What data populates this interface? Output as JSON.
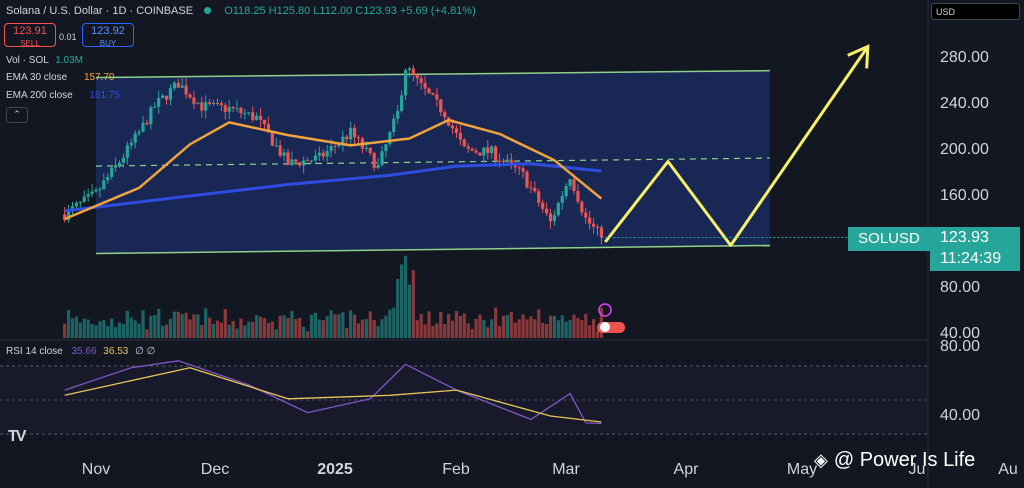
{
  "header": {
    "title": "Solana / U.S. Dollar · 1D · COINBASE",
    "ohlc": "O118.25 H125.80 L112.00 C123.93 +5.69 (+4.81%)"
  },
  "trade": {
    "sell_price": "123.91",
    "sell_label": "SELL",
    "spread": "0.01",
    "buy_price": "123.92",
    "buy_label": "BUY"
  },
  "indicators": {
    "vol_label": "Vol · SOL",
    "vol_value": "1.03M",
    "ema30_label": "EMA 30 close",
    "ema30_value": "157.70",
    "ema200_label": "EMA 200 close",
    "ema200_value": "181.75",
    "collapse_icon": "chevron-up-icon"
  },
  "currency_select": "USD",
  "price_label": {
    "symbol": "SOLUSD",
    "price": "123.93",
    "countdown": "11:24:39"
  },
  "rsi": {
    "label": "RSI 14 close",
    "value": "35.66",
    "ma_value": "36.53",
    "flags": "∅ ∅"
  },
  "watermark": "@ Power Is Life",
  "colors": {
    "background": "#131722",
    "up": "#26a69a",
    "down": "#ef5350",
    "ema30": "#f0a33c",
    "ema200": "#2f4de0",
    "channel": "#8fd18a",
    "channel_fill": "#1b2a5e",
    "projection": "#f5ef6a",
    "rsi": "#7e57c2",
    "rsi_ma": "#e6c659"
  },
  "chart_data": {
    "type": "candlestick",
    "title": "Solana / U.S. Dollar · 1D · COINBASE",
    "x_ticks": [
      "Nov",
      "Dec",
      "2025",
      "Feb",
      "Mar",
      "Apr",
      "May",
      "Ju",
      "Au"
    ],
    "y_ticks_price": [
      "280.00",
      "240.00",
      "200.00",
      "160.00",
      "120.00",
      "80.00",
      "40.00"
    ],
    "y_ticks_rsi": [
      "80.00",
      "40.00"
    ],
    "y_range": [
      35,
      305
    ],
    "last_close": 123.93,
    "price_path_close": [
      [
        "2024-10-24",
        144
      ],
      [
        "2024-11-01",
        162
      ],
      [
        "2024-11-07",
        190
      ],
      [
        "2024-11-12",
        215
      ],
      [
        "2024-11-16",
        238
      ],
      [
        "2024-11-22",
        258
      ],
      [
        "2024-11-28",
        238
      ],
      [
        "2024-12-05",
        236
      ],
      [
        "2024-12-12",
        228
      ],
      [
        "2024-12-20",
        188
      ],
      [
        "2024-12-28",
        193
      ],
      [
        "2025-01-05",
        215
      ],
      [
        "2025-01-12",
        185
      ],
      [
        "2025-01-17",
        232
      ],
      [
        "2025-01-19",
        272
      ],
      [
        "2025-01-23",
        255
      ],
      [
        "2025-01-29",
        232
      ],
      [
        "2025-02-03",
        200
      ],
      [
        "2025-02-10",
        198
      ],
      [
        "2025-02-18",
        178
      ],
      [
        "2025-02-25",
        137
      ],
      [
        "2025-03-02",
        178
      ],
      [
        "2025-03-06",
        140
      ],
      [
        "2025-03-10",
        124
      ]
    ],
    "ema30": [
      [
        "2024-10-24",
        140
      ],
      [
        "2024-11-12",
        167
      ],
      [
        "2024-11-25",
        205
      ],
      [
        "2024-12-05",
        224
      ],
      [
        "2024-12-20",
        213
      ],
      [
        "2025-01-05",
        204
      ],
      [
        "2025-01-20",
        210
      ],
      [
        "2025-01-30",
        226
      ],
      [
        "2025-02-12",
        214
      ],
      [
        "2025-02-26",
        191
      ],
      [
        "2025-03-10",
        157.7
      ]
    ],
    "ema200": [
      [
        "2024-10-24",
        147
      ],
      [
        "2024-11-20",
        158
      ],
      [
        "2024-12-20",
        170
      ],
      [
        "2025-01-15",
        178
      ],
      [
        "2025-02-01",
        186
      ],
      [
        "2025-02-20",
        188
      ],
      [
        "2025-03-10",
        181.75
      ]
    ],
    "channel": {
      "upper": [
        [
          "2024-11-01",
          263
        ],
        [
          "2025-04-22",
          269
        ]
      ],
      "lower": [
        [
          "2024-11-01",
          110
        ],
        [
          "2025-04-22",
          117
        ]
      ],
      "mid": [
        [
          "2024-11-01",
          186
        ],
        [
          "2025-04-22",
          193
        ]
      ]
    },
    "projection_path": [
      [
        "2025-03-11",
        120
      ],
      [
        "2025-03-27",
        190
      ],
      [
        "2025-04-12",
        117
      ],
      [
        "2025-05-17",
        290
      ]
    ],
    "rsi": [
      [
        "2024-10-24",
        55
      ],
      [
        "2024-11-10",
        68
      ],
      [
        "2024-11-22",
        72
      ],
      [
        "2024-12-10",
        58
      ],
      [
        "2024-12-25",
        42
      ],
      [
        "2025-01-10",
        50
      ],
      [
        "2025-01-19",
        70
      ],
      [
        "2025-02-01",
        55
      ],
      [
        "2025-02-20",
        38
      ],
      [
        "2025-03-02",
        53
      ],
      [
        "2025-03-06",
        36
      ],
      [
        "2025-03-10",
        35.66
      ]
    ],
    "rsi_ma": [
      [
        "2024-10-24",
        52
      ],
      [
        "2024-11-25",
        68
      ],
      [
        "2024-12-20",
        50
      ],
      [
        "2025-01-15",
        52
      ],
      [
        "2025-02-01",
        55
      ],
      [
        "2025-02-25",
        40
      ],
      [
        "2025-03-10",
        36.53
      ]
    ]
  }
}
